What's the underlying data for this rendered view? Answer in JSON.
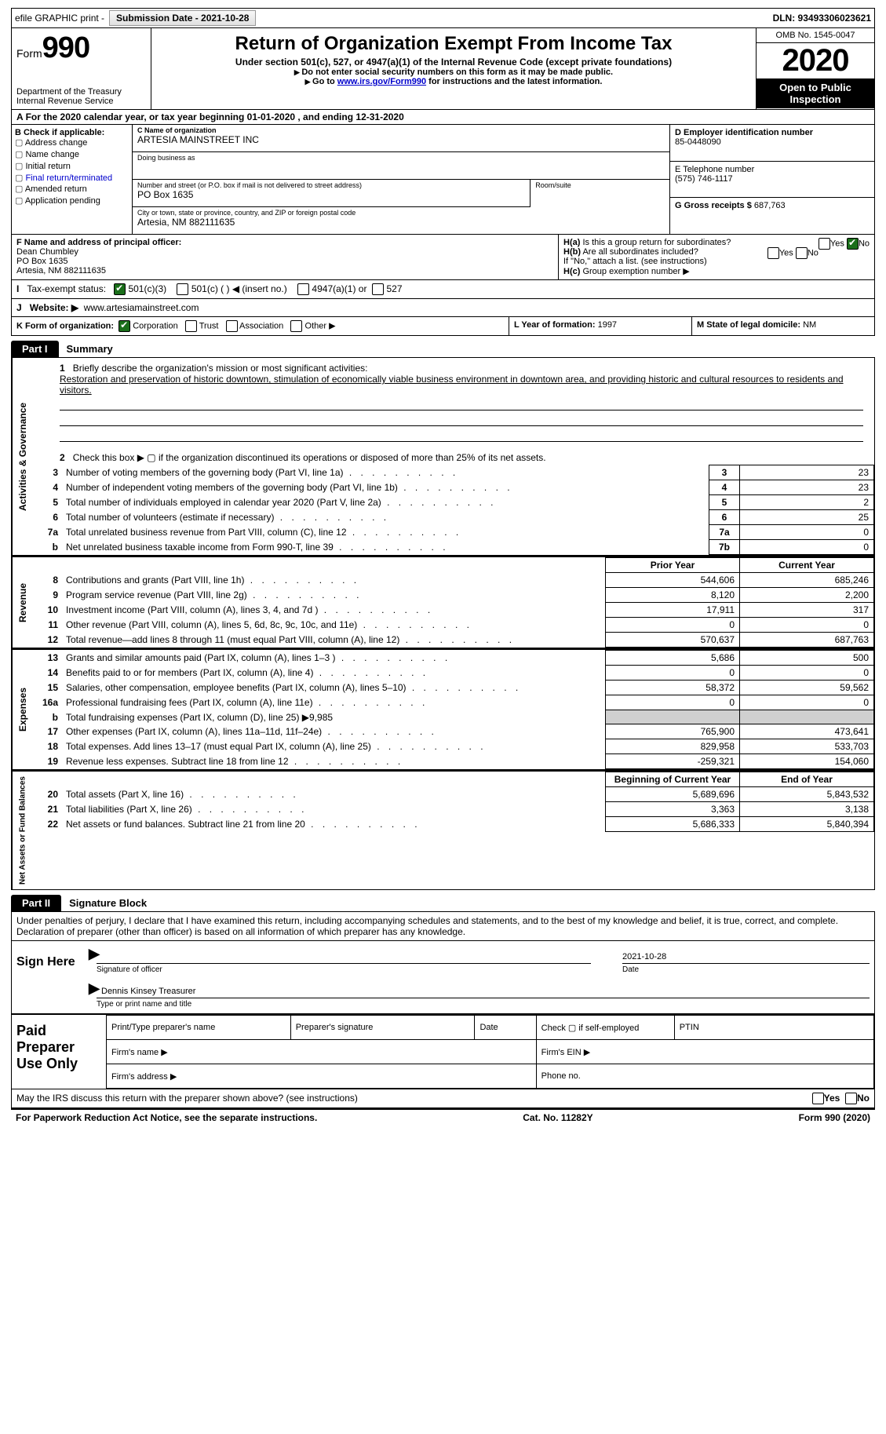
{
  "colors": {
    "text": "#000000",
    "background": "#ffffff",
    "inverse_bg": "#000000",
    "inverse_text": "#ffffff",
    "link": "#0000cc",
    "check_green": "#1a6e1a",
    "shade": "#d0d0d0"
  },
  "topbar": {
    "efile": "efile GRAPHIC print - ",
    "submission_label": "Submission Date - 2021-10-28",
    "dln_label": "DLN: 93493306023621"
  },
  "header": {
    "form_word": "Form",
    "form_number": "990",
    "dept1": "Department of the Treasury",
    "dept2": "Internal Revenue Service",
    "title": "Return of Organization Exempt From Income Tax",
    "sub": "Under section 501(c), 527, or 4947(a)(1) of the Internal Revenue Code (except private foundations)",
    "note1": "Do not enter social security numbers on this form as it may be made public.",
    "note2_pre": "Go to ",
    "note2_link": "www.irs.gov/Form990",
    "note2_post": " for instructions and the latest information.",
    "omb": "OMB No. 1545-0047",
    "year": "2020",
    "open": "Open to Public Inspection"
  },
  "line_a": "For the 2020 calendar year, or tax year beginning 01-01-2020   , and ending 12-31-2020",
  "box_b": {
    "title": "B Check if applicable:",
    "opts": [
      "Address change",
      "Name change",
      "Initial return",
      "Final return/terminated",
      "Amended return",
      "Application pending"
    ]
  },
  "box_c": {
    "name_lbl": "C Name of organization",
    "name": "ARTESIA MAINSTREET INC",
    "dba_lbl": "Doing business as",
    "dba": "",
    "addr_lbl": "Number and street (or P.O. box if mail is not delivered to street address)",
    "room_lbl": "Room/suite",
    "addr": "PO Box 1635",
    "city_lbl": "City or town, state or province, country, and ZIP or foreign postal code",
    "city": "Artesia, NM  882111635"
  },
  "box_d": {
    "ein_lbl": "D Employer identification number",
    "ein": "85-0448090",
    "phone_lbl": "E Telephone number",
    "phone": "(575) 746-1117",
    "gross_lbl": "G Gross receipts $",
    "gross": "687,763"
  },
  "box_f": {
    "lbl": "F Name and address of principal officer:",
    "line1": "Dean Chumbley",
    "line2": "PO Box 1635",
    "line3": "Artesia, NM  882111635"
  },
  "box_h": {
    "ha": "Is this a group return for subordinates?",
    "hb": "Are all subordinates included?",
    "hb_note": "If \"No,\" attach a list. (see instructions)",
    "hc": "Group exemption number ▶",
    "yes": "Yes",
    "no": "No"
  },
  "tax_status": {
    "lbl": "Tax-exempt status:",
    "o1": "501(c)(3)",
    "o2": "501(c) (  ) ◀ (insert no.)",
    "o3": "4947(a)(1) or",
    "o4": "527"
  },
  "row_j": {
    "lbl": "Website: ▶",
    "val": "www.artesiamainstreet.com"
  },
  "row_k": {
    "k_lbl": "K Form of organization:",
    "corp": "Corporation",
    "trust": "Trust",
    "assoc": "Association",
    "other": "Other ▶",
    "l_lbl": "L Year of formation:",
    "l_val": "1997",
    "m_lbl": "M State of legal domicile:",
    "m_val": "NM"
  },
  "part1": {
    "tab": "Part I",
    "title": "Summary",
    "q1_lbl": "1",
    "q1": "Briefly describe the organization's mission or most significant activities:",
    "q1_ans": "Restoration and preservation of historic downtown, stimulation of economically viable business environment in downtown area, and providing historic and cultural resources to residents and visitors.",
    "q2_lbl": "2",
    "q2": "Check this box ▶ ▢  if the organization discontinued its operations or disposed of more than 25% of its net assets.",
    "gov_label": "Activities & Governance",
    "rev_label": "Revenue",
    "exp_label": "Expenses",
    "net_label": "Net Assets or Fund Balances",
    "prior_hdr": "Prior Year",
    "curr_hdr": "Current Year",
    "begin_hdr": "Beginning of Current Year",
    "end_hdr": "End of Year",
    "lines_gov": [
      {
        "n": "3",
        "t": "Number of voting members of the governing body (Part VI, line 1a)",
        "box": "3",
        "v": "23"
      },
      {
        "n": "4",
        "t": "Number of independent voting members of the governing body (Part VI, line 1b)",
        "box": "4",
        "v": "23"
      },
      {
        "n": "5",
        "t": "Total number of individuals employed in calendar year 2020 (Part V, line 2a)",
        "box": "5",
        "v": "2"
      },
      {
        "n": "6",
        "t": "Total number of volunteers (estimate if necessary)",
        "box": "6",
        "v": "25"
      },
      {
        "n": "7a",
        "t": "Total unrelated business revenue from Part VIII, column (C), line 12",
        "box": "7a",
        "v": "0"
      },
      {
        "n": "b",
        "t": "Net unrelated business taxable income from Form 990-T, line 39",
        "box": "7b",
        "v": "0"
      }
    ],
    "lines_rev": [
      {
        "n": "8",
        "t": "Contributions and grants (Part VIII, line 1h)",
        "p": "544,606",
        "c": "685,246"
      },
      {
        "n": "9",
        "t": "Program service revenue (Part VIII, line 2g)",
        "p": "8,120",
        "c": "2,200"
      },
      {
        "n": "10",
        "t": "Investment income (Part VIII, column (A), lines 3, 4, and 7d )",
        "p": "17,911",
        "c": "317"
      },
      {
        "n": "11",
        "t": "Other revenue (Part VIII, column (A), lines 5, 6d, 8c, 9c, 10c, and 11e)",
        "p": "0",
        "c": "0"
      },
      {
        "n": "12",
        "t": "Total revenue—add lines 8 through 11 (must equal Part VIII, column (A), line 12)",
        "p": "570,637",
        "c": "687,763"
      }
    ],
    "lines_exp": [
      {
        "n": "13",
        "t": "Grants and similar amounts paid (Part IX, column (A), lines 1–3 )",
        "p": "5,686",
        "c": "500"
      },
      {
        "n": "14",
        "t": "Benefits paid to or for members (Part IX, column (A), line 4)",
        "p": "0",
        "c": "0"
      },
      {
        "n": "15",
        "t": "Salaries, other compensation, employee benefits (Part IX, column (A), lines 5–10)",
        "p": "58,372",
        "c": "59,562"
      },
      {
        "n": "16a",
        "t": "Professional fundraising fees (Part IX, column (A), line 11e)",
        "p": "0",
        "c": "0"
      },
      {
        "n": "b",
        "t": "Total fundraising expenses (Part IX, column (D), line 25) ▶9,985",
        "shade": true
      },
      {
        "n": "17",
        "t": "Other expenses (Part IX, column (A), lines 11a–11d, 11f–24e)",
        "p": "765,900",
        "c": "473,641"
      },
      {
        "n": "18",
        "t": "Total expenses. Add lines 13–17 (must equal Part IX, column (A), line 25)",
        "p": "829,958",
        "c": "533,703"
      },
      {
        "n": "19",
        "t": "Revenue less expenses. Subtract line 18 from line 12",
        "p": "-259,321",
        "c": "154,060"
      }
    ],
    "lines_net": [
      {
        "n": "20",
        "t": "Total assets (Part X, line 16)",
        "p": "5,689,696",
        "c": "5,843,532"
      },
      {
        "n": "21",
        "t": "Total liabilities (Part X, line 26)",
        "p": "3,363",
        "c": "3,138"
      },
      {
        "n": "22",
        "t": "Net assets or fund balances. Subtract line 21 from line 20",
        "p": "5,686,333",
        "c": "5,840,394"
      }
    ]
  },
  "part2": {
    "tab": "Part II",
    "title": "Signature Block",
    "decl": "Under penalties of perjury, I declare that I have examined this return, including accompanying schedules and statements, and to the best of my knowledge and belief, it is true, correct, and complete. Declaration of preparer (other than officer) is based on all information of which preparer has any knowledge.",
    "sign_here": "Sign Here",
    "sig_officer": "Signature of officer",
    "sig_date": "2021-10-28",
    "date_lbl": "Date",
    "name_title": "Dennis Kinsey Treasurer",
    "name_title_lbl": "Type or print name and title",
    "paid_lbl": "Paid Preparer Use Only",
    "pt_name": "Print/Type preparer's name",
    "pt_sig": "Preparer's signature",
    "pt_date": "Date",
    "pt_check": "Check ▢ if self-employed",
    "pt_ptin": "PTIN",
    "firm_name": "Firm's name   ▶",
    "firm_ein": "Firm's EIN ▶",
    "firm_addr": "Firm's address ▶",
    "firm_phone": "Phone no."
  },
  "bottom": {
    "q": "May the IRS discuss this return with the preparer shown above? (see instructions)",
    "yes": "Yes",
    "no": "No"
  },
  "footer": {
    "left": "For Paperwork Reduction Act Notice, see the separate instructions.",
    "mid": "Cat. No. 11282Y",
    "right": "Form 990 (2020)"
  }
}
